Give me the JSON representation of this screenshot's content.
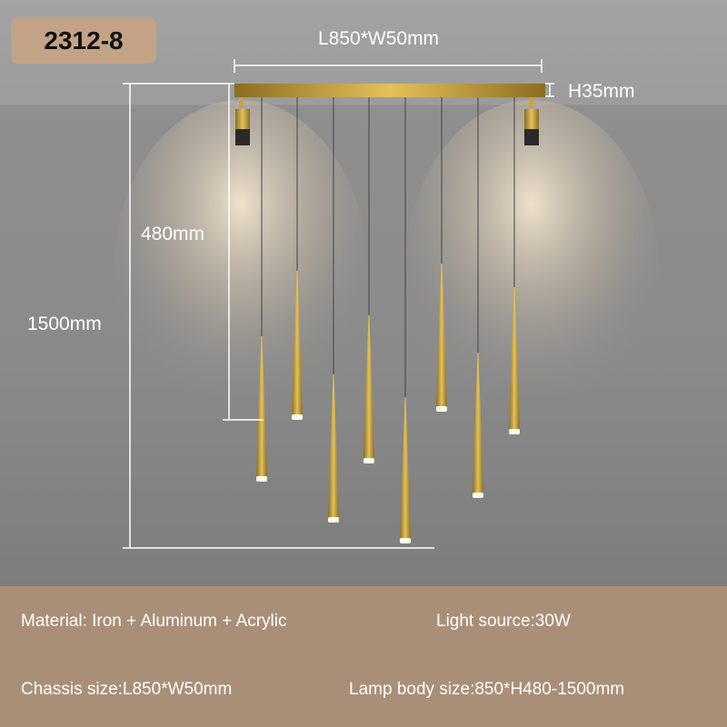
{
  "model_badge": "2312-8",
  "dimensions": {
    "length_width": "L850*W50mm",
    "height_bar": "H35mm",
    "short_drop": "480mm",
    "long_drop": "1500mm"
  },
  "specs": {
    "material": "Material: Iron + Aluminum + Acrylic",
    "light_source": "Light source:30W",
    "chassis_size": "Chassis size:L850*W50mm",
    "lamp_body_size": "Lamp body size:850*H480-1500mm"
  },
  "colors": {
    "gold": "#c9a43e",
    "badge": "#c2a386",
    "spec_band": "#a98f78"
  }
}
